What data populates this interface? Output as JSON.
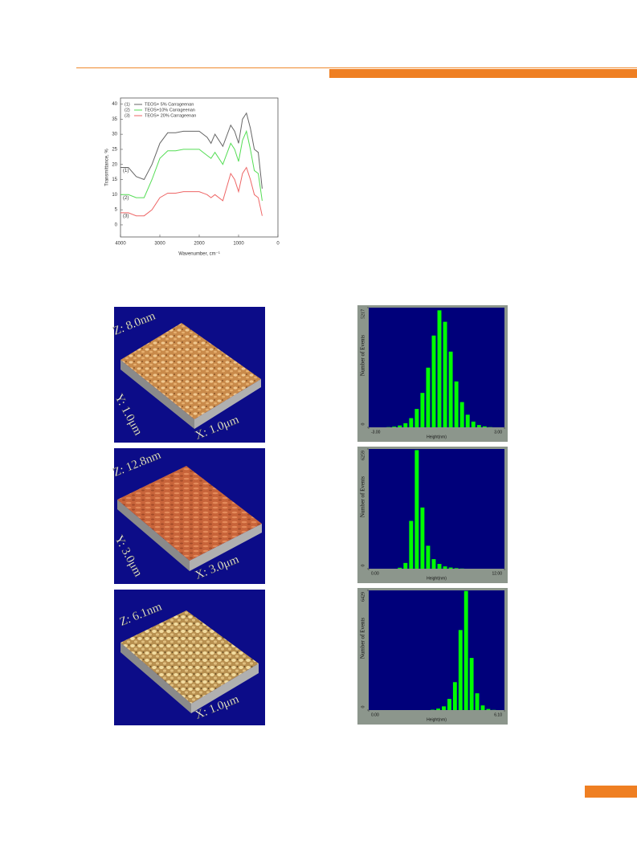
{
  "chart_data": [
    {
      "type": "line",
      "xlabel": "Wavenumber, cm⁻¹",
      "ylabel": "Transmittance, %",
      "x": [
        4000,
        3800,
        3600,
        3400,
        3200,
        3000,
        2800,
        2600,
        2400,
        2200,
        2000,
        1800,
        1700,
        1600,
        1400,
        1200,
        1100,
        1000,
        900,
        800,
        700,
        600,
        500,
        400
      ],
      "series": [
        {
          "label": "(1)",
          "name": "TEOS+ 5% Carrageenan",
          "color": "#666666",
          "values": [
            19,
            19,
            16,
            15,
            20,
            27,
            30.5,
            30.5,
            31,
            31,
            31,
            29,
            27,
            30,
            26,
            33,
            31,
            27,
            35,
            37,
            32,
            25,
            24,
            12
          ]
        },
        {
          "label": "(2)",
          "name": "TEOS+10% Carrageenan",
          "color": "#55dd55",
          "values": [
            10,
            10,
            9,
            9,
            15,
            22,
            24.5,
            24.5,
            25,
            25,
            25,
            23,
            22,
            24,
            20,
            27,
            25,
            21,
            28,
            31,
            25,
            18,
            17,
            8
          ]
        },
        {
          "label": "(3)",
          "name": "TEOS+ 20% Carrageenan",
          "color": "#ee6666",
          "values": [
            4,
            4,
            3,
            3,
            5,
            9,
            10.5,
            10.5,
            11,
            11,
            11,
            10,
            9,
            10,
            8,
            17,
            15,
            11,
            17,
            19,
            15,
            10,
            9,
            3
          ]
        }
      ],
      "xlim": [
        4000,
        0
      ],
      "xticks": [
        4000,
        3000,
        2000,
        1000,
        0
      ],
      "ylim": [
        -4,
        42
      ],
      "yticks": [
        0,
        5,
        10,
        15,
        20,
        25,
        30,
        35,
        40
      ]
    },
    {
      "type": "histogram",
      "xlabel": "Height(nm)",
      "ylabel": "Number of Events",
      "color": "#00ff00",
      "bins": [
        -3,
        -2.75,
        -2.5,
        -2.25,
        -2,
        -1.75,
        -1.5,
        -1.25,
        -1,
        -0.75,
        -0.5,
        -0.25,
        0,
        0.25,
        0.5,
        0.75,
        1,
        1.25,
        1.5,
        1.75,
        2,
        2.25,
        2.5,
        2.75,
        3
      ],
      "values": [
        0,
        0,
        0,
        10,
        30,
        80,
        180,
        400,
        800,
        1500,
        2600,
        4000,
        5100,
        4600,
        3300,
        2000,
        1100,
        550,
        250,
        100,
        40,
        10,
        0,
        0
      ],
      "xlim": [
        -3,
        3
      ],
      "xticks": [
        {
          "value": -3,
          "label": "-3.00"
        },
        {
          "value": 3,
          "label": "3.00"
        }
      ],
      "ylim": [
        0,
        5217
      ],
      "yticks": [
        0,
        5217
      ]
    },
    {
      "type": "histogram",
      "xlabel": "Height(nm)",
      "ylabel": "Number of Events",
      "color": "#00ff00",
      "bins": [
        0,
        0.5,
        1,
        1.5,
        2,
        2.5,
        3,
        3.5,
        4,
        4.5,
        5,
        5.5,
        6,
        6.5,
        7,
        7.5,
        8,
        8.5,
        9,
        9.5,
        10,
        10.5,
        11,
        11.5,
        12
      ],
      "values": [
        0,
        0,
        0,
        0,
        0,
        50,
        300,
        2500,
        6200,
        3200,
        1200,
        500,
        250,
        120,
        60,
        30,
        10,
        0,
        0,
        0,
        0,
        0,
        0,
        0
      ],
      "xlim": [
        0,
        12
      ],
      "xticks": [
        {
          "value": 0,
          "label": "0.00"
        },
        {
          "value": 12,
          "label": "12.00"
        }
      ],
      "ylim": [
        0,
        6259
      ],
      "yticks": [
        0,
        6259
      ]
    },
    {
      "type": "histogram",
      "xlabel": "Height(nm)",
      "ylabel": "Number of Events",
      "color": "#00ff00",
      "bins": [
        0,
        0.25,
        0.5,
        0.75,
        1,
        1.25,
        1.5,
        1.75,
        2,
        2.25,
        2.5,
        2.75,
        3,
        3.25,
        3.5,
        3.75,
        4,
        4.25,
        4.5,
        4.75,
        5,
        5.25,
        5.5,
        5.75,
        6
      ],
      "values": [
        0,
        0,
        0,
        0,
        0,
        0,
        0,
        0,
        0,
        0,
        0,
        20,
        80,
        200,
        600,
        1500,
        4300,
        6400,
        2800,
        900,
        250,
        60,
        10,
        0
      ],
      "xlim": [
        0,
        6.1
      ],
      "xticks": [
        {
          "value": 0,
          "label": "0.00"
        },
        {
          "value": 6.1,
          "label": "6.10"
        }
      ],
      "ylim": [
        0,
        6429
      ],
      "yticks": [
        0,
        6429
      ]
    }
  ],
  "afm_images": [
    {
      "z_label": "Z: 8.0nm",
      "y_label": "Y: 1.0μm",
      "x_label": "X: 1.0μm"
    },
    {
      "z_label": "Z: 12.8nm",
      "y_label": "Y: 3.0μm",
      "x_label": "X: 3.0μm"
    },
    {
      "z_label": "Z: 6.1nm",
      "x_label": "X: 1.0μm"
    }
  ]
}
